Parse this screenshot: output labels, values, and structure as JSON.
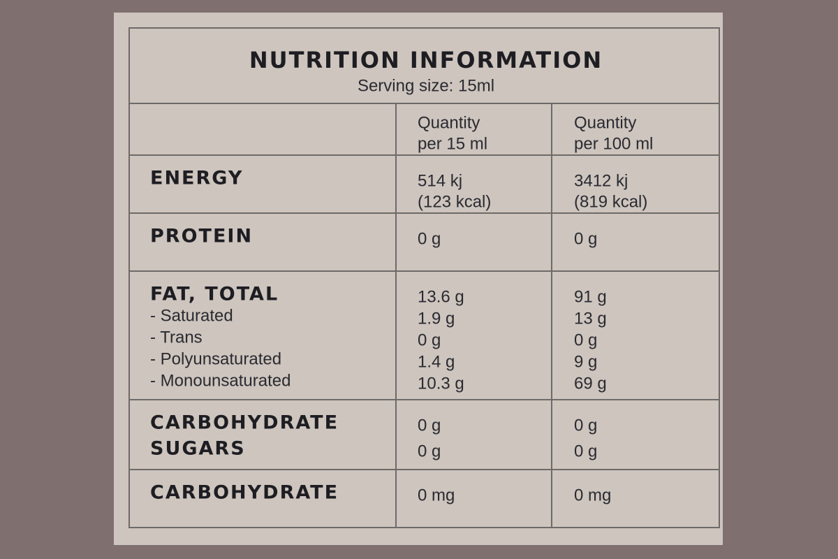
{
  "header": {
    "title": "NUTRITION INFORMATION",
    "subtitle": "Serving size: 15ml"
  },
  "table": {
    "column_headers": [
      [
        "Quantity",
        "per 15 ml"
      ],
      [
        "Quantity",
        "per 100 ml"
      ]
    ],
    "rows": [
      {
        "headings": [
          "ENERGY"
        ],
        "per_serving": [
          "514 kj",
          "(123 kcal)"
        ],
        "per_100ml": [
          "3412 kj",
          "(819 kcal)"
        ]
      },
      {
        "headings": [
          "PROTEIN"
        ],
        "per_serving": [
          "0 g"
        ],
        "per_100ml": [
          "0 g"
        ]
      },
      {
        "headings": [
          "FAT, TOTAL"
        ],
        "subitems": [
          "- Saturated",
          "- Trans",
          "- Polyunsaturated",
          "- Monounsaturated"
        ],
        "per_serving": [
          "13.6 g",
          "1.9 g",
          "0 g",
          "1.4 g",
          "10.3 g"
        ],
        "per_100ml": [
          "91 g",
          "13 g",
          "0 g",
          "9 g",
          "69 g"
        ]
      },
      {
        "headings": [
          "CARBOHYDRATE",
          "SUGARS"
        ],
        "per_serving": [
          "0 g",
          "0 g"
        ],
        "per_100ml": [
          "0 g",
          "0 g"
        ]
      },
      {
        "headings": [
          "CARBOHYDRATE"
        ],
        "per_serving": [
          "0 mg"
        ],
        "per_100ml": [
          "0 mg"
        ]
      }
    ]
  }
}
